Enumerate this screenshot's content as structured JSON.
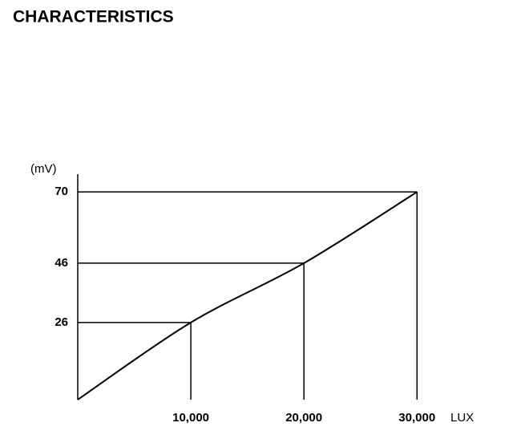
{
  "chart_data": {
    "type": "line",
    "title": "CHARACTERISTICS",
    "y_label": "(mV)",
    "x_label": "LUX",
    "x": [
      0,
      10000,
      20000,
      30000
    ],
    "series": [
      {
        "values": [
          0,
          26,
          46,
          70
        ],
        "color": "#000000"
      }
    ],
    "xlim": [
      0,
      31400
    ],
    "ylim": [
      0,
      76
    ],
    "xticks": [
      {
        "value": 10000,
        "label": "10,000"
      },
      {
        "value": 20000,
        "label": "20,000"
      },
      {
        "value": 30000,
        "label": "30,000"
      }
    ],
    "yticks": [
      26,
      46,
      70
    ]
  }
}
